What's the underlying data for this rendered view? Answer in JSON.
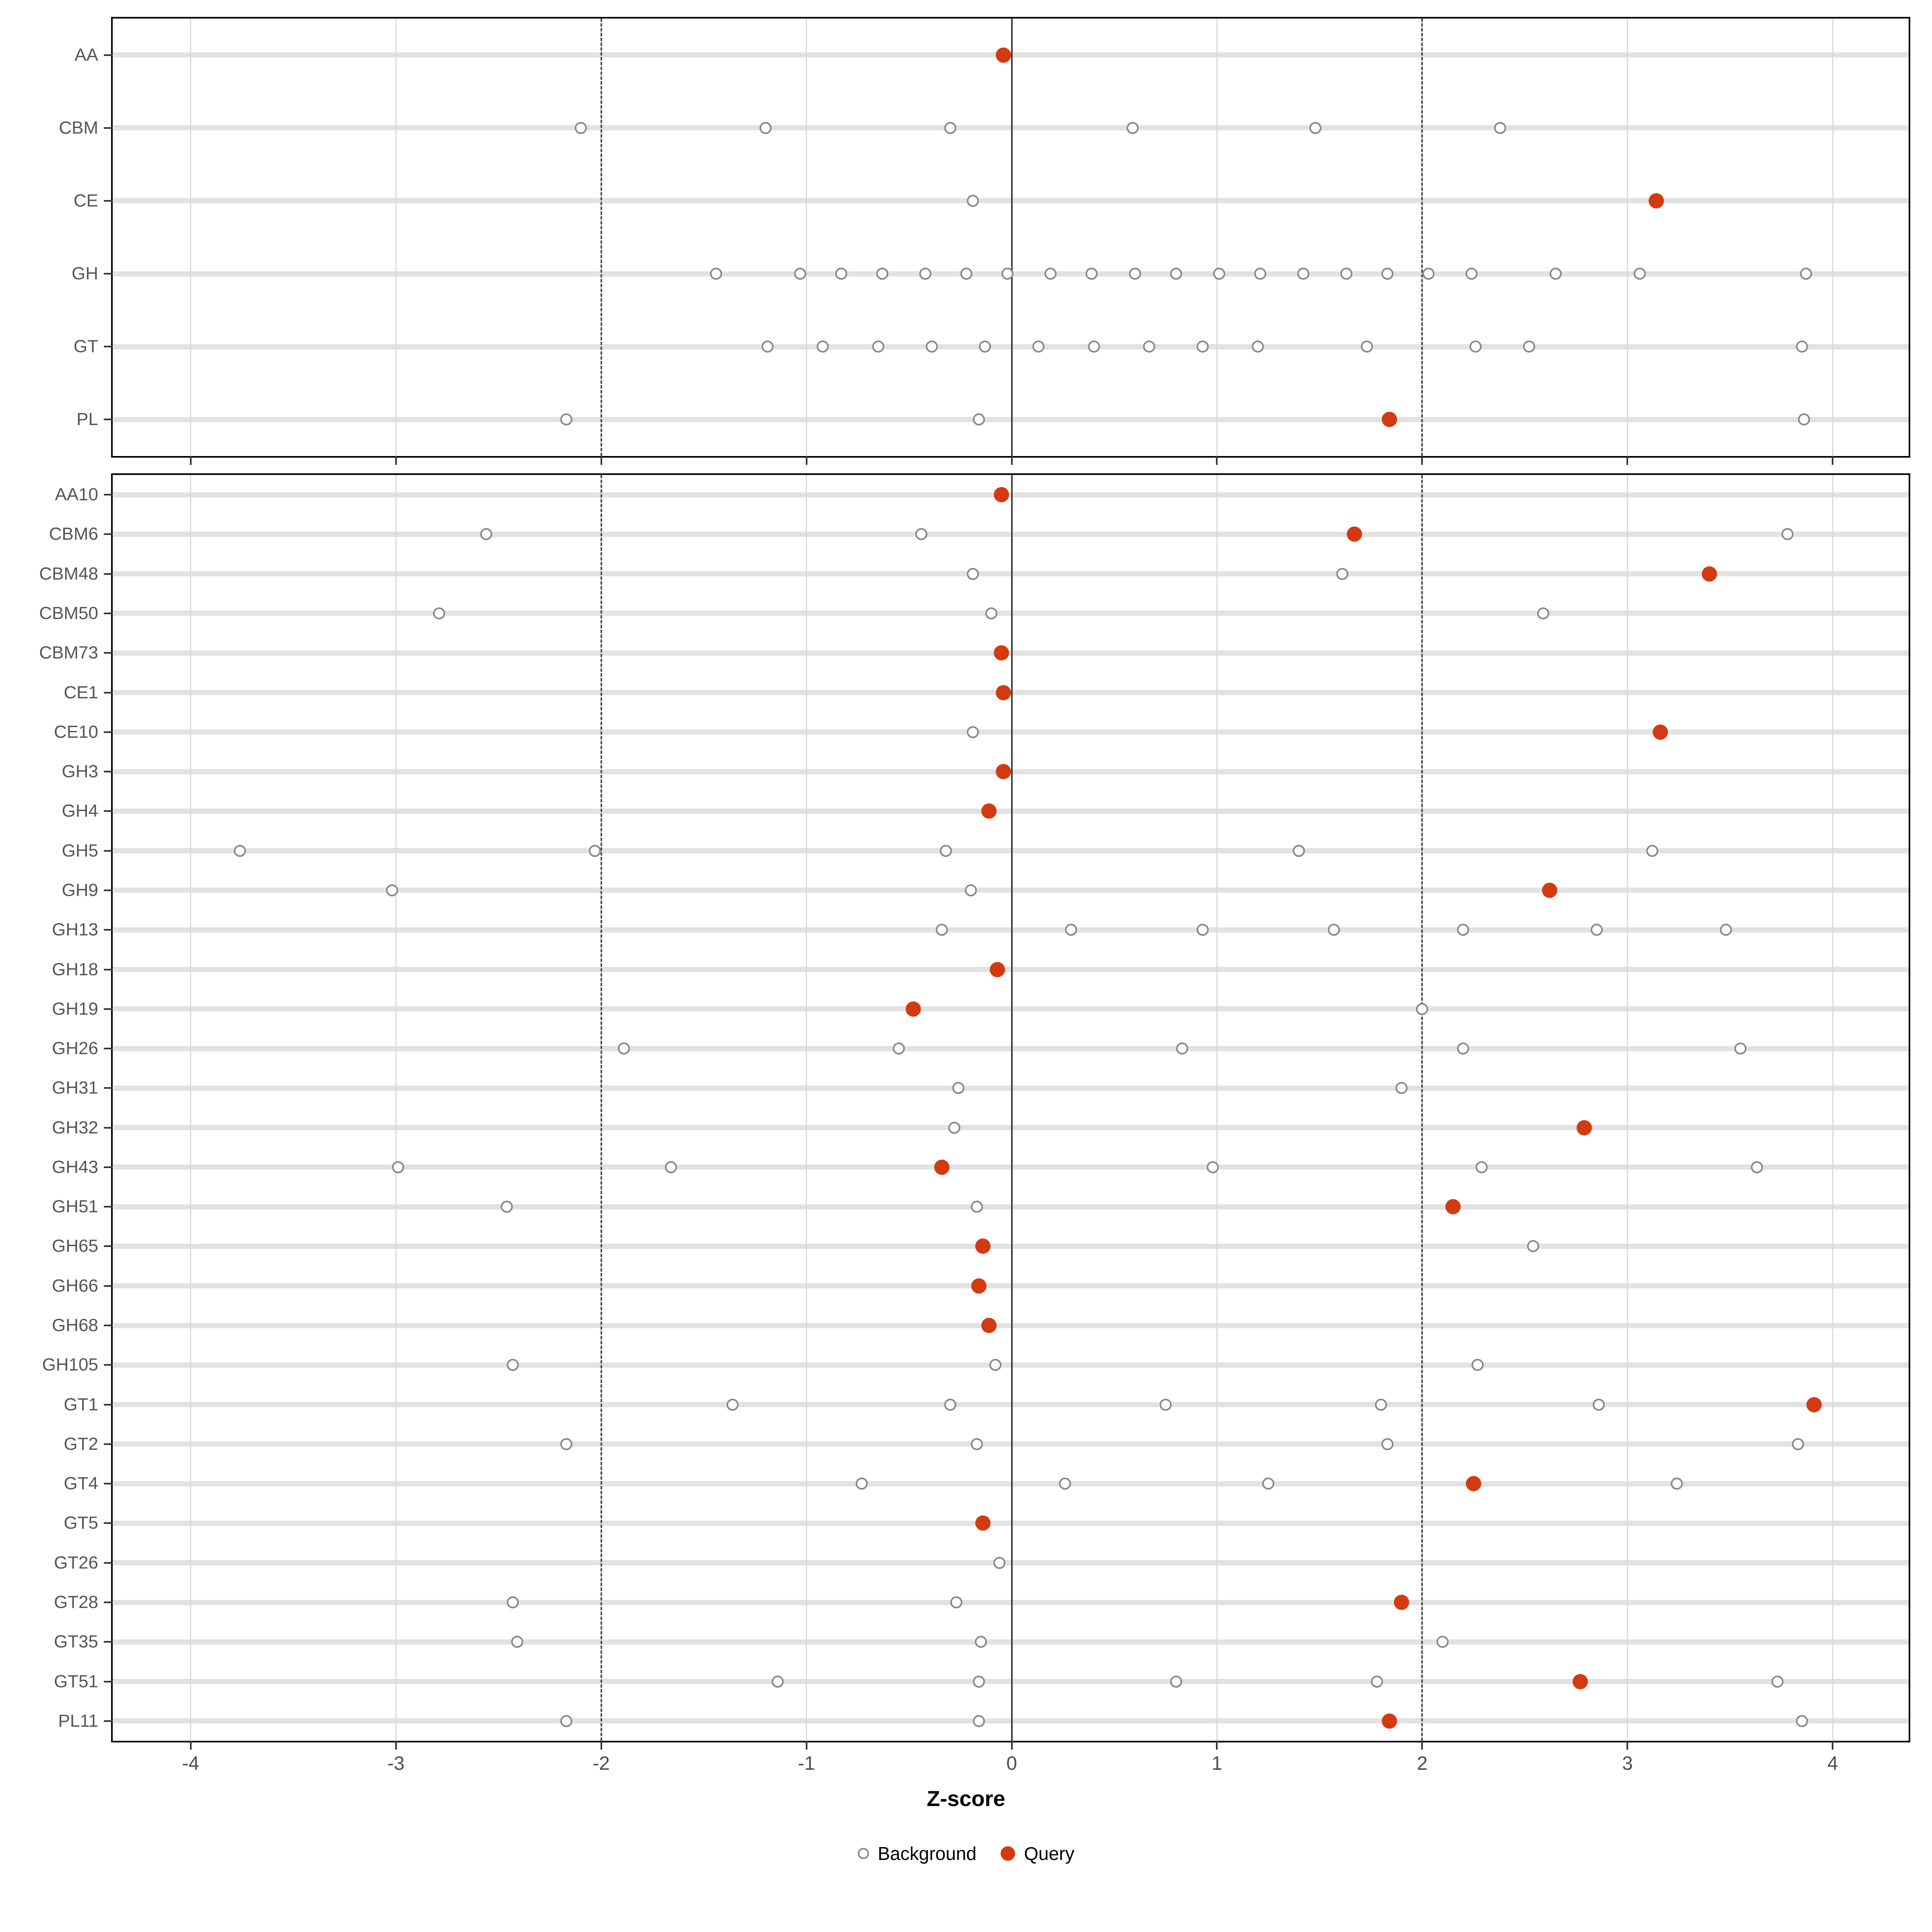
{
  "chart_data": {
    "type": "scatter",
    "xlabel": "Z-score",
    "x_ticks": [
      -4,
      -3,
      -2,
      -1,
      0,
      1,
      2,
      3,
      4
    ],
    "xlim": [
      -4.38,
      4.37
    ],
    "grid_lines": [
      -4,
      -3,
      -2,
      -1,
      0,
      1,
      2,
      3,
      4
    ],
    "reference_lines": {
      "dashed": [
        -2,
        2
      ],
      "solid_zero": 0
    },
    "legend": {
      "background_label": "Background",
      "query_label": "Query"
    },
    "colors": {
      "query": "#D43A10",
      "background_stroke": "#888888",
      "stripe": "#E2E2E2",
      "minor_grid": "#DADADA",
      "dashed_line": "#4A4A4A",
      "zero_line": "#3F3F3F",
      "panel_border": "#000000",
      "axis_text": "#4D4D4D"
    },
    "panels": [
      {
        "name": "families",
        "rows": [
          {
            "label": "AA",
            "background": [],
            "query": -0.04
          },
          {
            "label": "CBM",
            "background": [
              -2.1,
              -1.2,
              -0.3,
              0.59,
              1.48,
              2.38
            ],
            "query": null
          },
          {
            "label": "CE",
            "background": [
              -0.19
            ],
            "query": 3.14
          },
          {
            "label": "GH",
            "background": [
              -1.44,
              -1.03,
              -0.83,
              -0.63,
              -0.42,
              -0.22,
              -0.02,
              0.19,
              0.39,
              0.6,
              0.8,
              1.01,
              1.21,
              1.42,
              1.63,
              1.83,
              2.03,
              2.24,
              2.65,
              3.06,
              3.87
            ],
            "query": null
          },
          {
            "label": "GT",
            "background": [
              -1.19,
              -0.92,
              -0.65,
              -0.39,
              -0.13,
              0.13,
              0.4,
              0.67,
              0.93,
              1.2,
              1.73,
              2.26,
              2.52,
              3.85
            ],
            "query": null
          },
          {
            "label": "PL",
            "background": [
              -2.17,
              -0.16,
              3.86
            ],
            "query": 1.84
          }
        ]
      },
      {
        "name": "subfamilies",
        "rows": [
          {
            "label": "AA10",
            "background": [],
            "query": -0.05
          },
          {
            "label": "CBM6",
            "background": [
              -2.56,
              -0.44,
              3.78
            ],
            "query": 1.67
          },
          {
            "label": "CBM48",
            "background": [
              -0.19,
              1.61
            ],
            "query": 3.4
          },
          {
            "label": "CBM50",
            "background": [
              -2.79,
              -0.1,
              2.59
            ],
            "query": null
          },
          {
            "label": "CBM73",
            "background": [],
            "query": -0.05
          },
          {
            "label": "CE1",
            "background": [],
            "query": -0.04
          },
          {
            "label": "CE10",
            "background": [
              -0.19
            ],
            "query": 3.16
          },
          {
            "label": "GH3",
            "background": [],
            "query": -0.04
          },
          {
            "label": "GH4",
            "background": [],
            "query": -0.11
          },
          {
            "label": "GH5",
            "background": [
              -3.76,
              -2.03,
              -0.32,
              1.4,
              3.12
            ],
            "query": null
          },
          {
            "label": "GH9",
            "background": [
              -3.02,
              -0.2
            ],
            "query": 2.62
          },
          {
            "label": "GH13",
            "background": [
              -0.34,
              0.29,
              0.93,
              1.57,
              2.2,
              2.85,
              3.48
            ],
            "query": null
          },
          {
            "label": "GH18",
            "background": [],
            "query": -0.07
          },
          {
            "label": "GH19",
            "background": [
              2.0
            ],
            "query": -0.48
          },
          {
            "label": "GH26",
            "background": [
              -1.89,
              -0.55,
              0.83,
              2.2,
              3.55
            ],
            "query": null
          },
          {
            "label": "GH31",
            "background": [
              -0.26,
              1.9
            ],
            "query": null
          },
          {
            "label": "GH32",
            "background": [
              -0.28
            ],
            "query": 2.79
          },
          {
            "label": "GH43",
            "background": [
              -2.99,
              -1.66,
              0.98,
              2.29,
              3.63
            ],
            "query": -0.34
          },
          {
            "label": "GH51",
            "background": [
              -2.46,
              -0.17
            ],
            "query": 2.15
          },
          {
            "label": "GH65",
            "background": [
              2.54
            ],
            "query": -0.14
          },
          {
            "label": "GH66",
            "background": [],
            "query": -0.16
          },
          {
            "label": "GH68",
            "background": [],
            "query": -0.11
          },
          {
            "label": "GH105",
            "background": [
              -2.43,
              -0.08,
              2.27
            ],
            "query": null
          },
          {
            "label": "GT1",
            "background": [
              -1.36,
              -0.3,
              0.75,
              1.8,
              2.86
            ],
            "query": 3.91
          },
          {
            "label": "GT2",
            "background": [
              -2.17,
              -0.17,
              1.83,
              3.83
            ],
            "query": null
          },
          {
            "label": "GT4",
            "background": [
              -0.73,
              0.26,
              1.25,
              3.24
            ],
            "query": 2.25
          },
          {
            "label": "GT5",
            "background": [],
            "query": -0.14
          },
          {
            "label": "GT26",
            "background": [
              -0.06
            ],
            "query": null
          },
          {
            "label": "GT28",
            "background": [
              -2.43,
              -0.27
            ],
            "query": 1.9
          },
          {
            "label": "GT35",
            "background": [
              -2.41,
              -0.15,
              2.1
            ],
            "query": null
          },
          {
            "label": "GT51",
            "background": [
              -1.14,
              -0.16,
              0.8,
              1.78,
              3.73
            ],
            "query": 2.77
          },
          {
            "label": "PL11",
            "background": [
              -2.17,
              -0.16,
              3.85
            ],
            "query": 1.84
          }
        ]
      }
    ]
  }
}
